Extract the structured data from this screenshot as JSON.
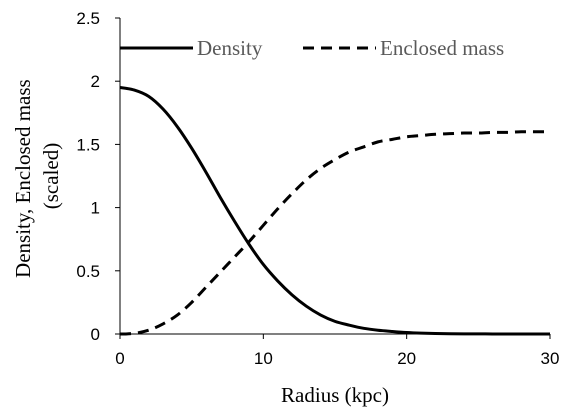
{
  "chart_data": {
    "type": "line",
    "title": "",
    "xlabel": "Radius (kpc)",
    "ylabel": "Density, Enclosed mass (scaled)",
    "ylabel_lines": [
      "Density, Enclosed mass",
      "(scaled)"
    ],
    "xlim": [
      0,
      30
    ],
    "ylim": [
      0,
      2.5
    ],
    "xticks": [
      0,
      10,
      20,
      30
    ],
    "yticks": [
      0,
      0.5,
      1,
      1.5,
      2,
      2.5
    ],
    "xtick_labels": [
      "0",
      "10",
      "20",
      "30"
    ],
    "ytick_labels": [
      "0",
      "0.5",
      "1",
      "1.5",
      "2",
      "2.5"
    ],
    "grid": false,
    "legend_position": "top",
    "series": [
      {
        "name": "Density",
        "style": "solid",
        "color": "#000000",
        "x": [
          0,
          1,
          2,
          3,
          4,
          5,
          6,
          7,
          8,
          9,
          10,
          11,
          12,
          13,
          14,
          15,
          16,
          17,
          18,
          19,
          20,
          21,
          22,
          23,
          24,
          25,
          26,
          27,
          28,
          29,
          30
        ],
        "y": [
          1.95,
          1.93,
          1.88,
          1.78,
          1.64,
          1.47,
          1.28,
          1.08,
          0.89,
          0.71,
          0.55,
          0.42,
          0.31,
          0.22,
          0.15,
          0.1,
          0.07,
          0.045,
          0.03,
          0.02,
          0.012,
          0.007,
          0.004,
          0.002,
          0.001,
          0.001,
          0,
          0,
          0,
          0,
          0
        ]
      },
      {
        "name": "Enclosed mass",
        "style": "dashed",
        "color": "#000000",
        "x": [
          0,
          1,
          2,
          3,
          4,
          5,
          6,
          7,
          8,
          9,
          10,
          11,
          12,
          13,
          14,
          15,
          16,
          17,
          18,
          19,
          20,
          21,
          22,
          23,
          24,
          25,
          26,
          27,
          28,
          29,
          30
        ],
        "y": [
          0,
          0.005,
          0.03,
          0.08,
          0.15,
          0.25,
          0.37,
          0.49,
          0.61,
          0.73,
          0.86,
          0.99,
          1.11,
          1.22,
          1.31,
          1.38,
          1.44,
          1.48,
          1.52,
          1.54,
          1.56,
          1.57,
          1.58,
          1.585,
          1.59,
          1.59,
          1.595,
          1.595,
          1.6,
          1.6,
          1.6
        ]
      }
    ],
    "colors": {
      "axis": "#000000",
      "series": "#000000",
      "legend_text": "#595959"
    }
  }
}
